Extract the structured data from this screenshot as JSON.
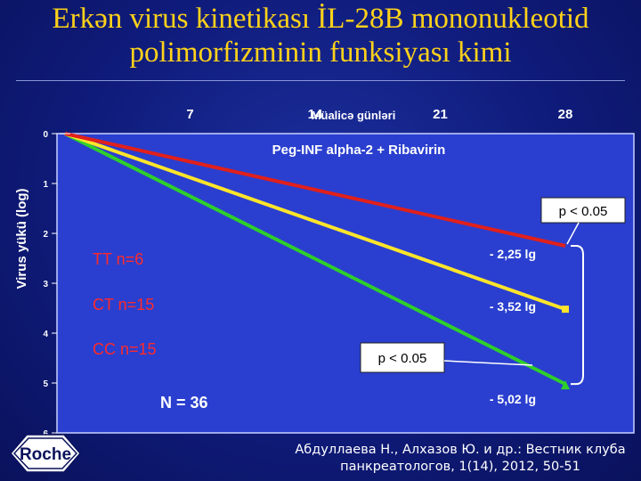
{
  "title": {
    "line1": "Erkən virus kinetikası İL-28B mononukleotid",
    "line2": "polimorfizminin funksiyası kimi"
  },
  "colors": {
    "background": "#101c80",
    "title": "#ffd21a",
    "plot_area": "#2a3fcf",
    "tt": "#e0201c",
    "ct": "#ffe52a",
    "cc": "#2fcf2a",
    "label_red": "#ff2a2a"
  },
  "chart_data": {
    "type": "line",
    "title": "Peg-INF alpha-2 + Ribavirin",
    "xlabel": "Müalicə günləri",
    "ylabel": "Virus yükü (log)",
    "x_ticks": [
      "7",
      "14",
      "21",
      "28"
    ],
    "y_ticks": [
      "0",
      "1",
      "2",
      "3",
      "4",
      "5",
      "6"
    ],
    "xlim": [
      0,
      28
    ],
    "ylim": [
      0,
      6
    ],
    "y_inverted": true,
    "grid": false,
    "series": [
      {
        "name": "TT  n=6",
        "color": "#e0201c",
        "x": [
          0,
          28
        ],
        "y": [
          0,
          2.25
        ],
        "end_label": "- 2,25 lg",
        "marker": "none"
      },
      {
        "name": "CT  n=15",
        "color": "#ffe52a",
        "x": [
          0,
          28
        ],
        "y": [
          0,
          3.52
        ],
        "end_label": "- 3,52 lg",
        "marker": "square"
      },
      {
        "name": "CC  n=15",
        "color": "#2fcf2a",
        "x": [
          0,
          28
        ],
        "y": [
          0,
          5.02
        ],
        "end_label": "- 5,02 lg",
        "marker": "triangle"
      }
    ],
    "annotations": [
      {
        "text": "p < 0.05",
        "between": [
          "TT  n=6",
          "CC  n=15"
        ],
        "position": "top-right"
      },
      {
        "text": "p < 0.05",
        "between": [
          "CT  n=15",
          "CC  n=15"
        ],
        "position": "center"
      }
    ],
    "total_label": "N = 36"
  },
  "logo": {
    "text": "Roche"
  },
  "citation": {
    "line1": "Абдуллаева Н., Алхазов Ю. и др.: Вестник клуба",
    "line2": "панкреатологов, 1(14), 2012, 50-51"
  }
}
